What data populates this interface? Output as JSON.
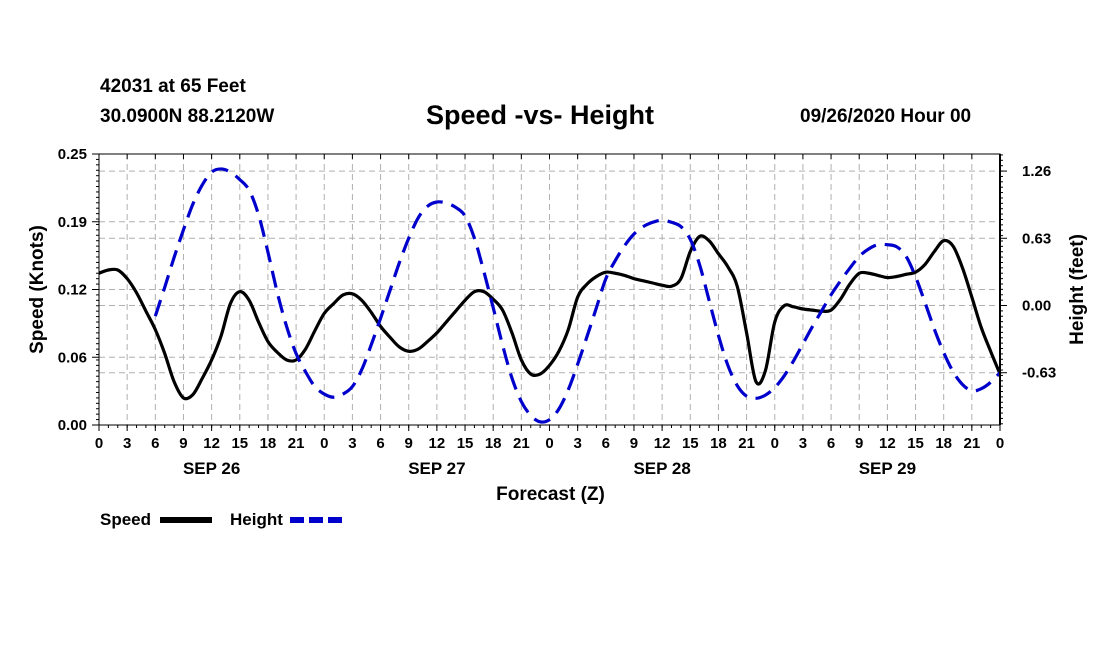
{
  "header": {
    "station": "42031 at 65 Feet",
    "coords": "30.0900N 88.2120W",
    "title": "Speed -vs- Height",
    "date": "09/26/2020 Hour 00"
  },
  "chart_data": {
    "type": "line",
    "title": "Speed -vs- Height",
    "xlabel": "Forecast (Z)",
    "ylabel_left": "Speed (Knots)",
    "ylabel_right": "Height (feet)",
    "x_range_hours": [
      0,
      96
    ],
    "y_left_range": [
      0,
      0.25
    ],
    "y_right_range": [
      -1.12,
      1.42
    ],
    "y_left_ticks": [
      "0.00",
      "0.06",
      "0.12",
      "0.19",
      "0.25"
    ],
    "y_left_tick_values": [
      0,
      0.0625,
      0.125,
      0.1875,
      0.25
    ],
    "y_right_ticks": [
      "-0.63",
      "0.00",
      "0.63",
      "1.26"
    ],
    "y_right_tick_values": [
      -0.63,
      0,
      0.63,
      1.26
    ],
    "x_tick_hours": [
      0,
      3,
      6,
      9,
      12,
      15,
      18,
      21,
      24,
      27,
      30,
      33,
      36,
      39,
      42,
      45,
      48,
      51,
      54,
      57,
      60,
      63,
      66,
      69,
      72,
      75,
      78,
      81,
      84,
      87,
      90,
      93,
      96
    ],
    "x_tick_labels": [
      "0",
      "3",
      "6",
      "9",
      "12",
      "15",
      "18",
      "21",
      "0",
      "3",
      "6",
      "9",
      "12",
      "15",
      "18",
      "21",
      "0",
      "3",
      "6",
      "9",
      "12",
      "15",
      "18",
      "21",
      "0",
      "3",
      "6",
      "9",
      "12",
      "15",
      "18",
      "21",
      "0"
    ],
    "day_labels": [
      {
        "label": "SEP 26",
        "hour": 12
      },
      {
        "label": "SEP 27",
        "hour": 36
      },
      {
        "label": "SEP 28",
        "hour": 60
      },
      {
        "label": "SEP 29",
        "hour": 84
      }
    ],
    "grid": true,
    "legend_position": "bottom-left",
    "series": [
      {
        "name": "Speed",
        "axis": "left",
        "color": "#000000",
        "dash": "solid",
        "points": [
          [
            0,
            0.14
          ],
          [
            1,
            0.143
          ],
          [
            2,
            0.143
          ],
          [
            3,
            0.135
          ],
          [
            4,
            0.122
          ],
          [
            5,
            0.105
          ],
          [
            6,
            0.088
          ],
          [
            7,
            0.066
          ],
          [
            8,
            0.04
          ],
          [
            9,
            0.025
          ],
          [
            10,
            0.028
          ],
          [
            11,
            0.043
          ],
          [
            12,
            0.06
          ],
          [
            13,
            0.082
          ],
          [
            14,
            0.112
          ],
          [
            15,
            0.123
          ],
          [
            16,
            0.115
          ],
          [
            17,
            0.095
          ],
          [
            18,
            0.077
          ],
          [
            19,
            0.067
          ],
          [
            20,
            0.06
          ],
          [
            21,
            0.06
          ],
          [
            22,
            0.07
          ],
          [
            23,
            0.087
          ],
          [
            24,
            0.103
          ],
          [
            25,
            0.112
          ],
          [
            26,
            0.12
          ],
          [
            27,
            0.121
          ],
          [
            28,
            0.115
          ],
          [
            29,
            0.104
          ],
          [
            30,
            0.091
          ],
          [
            31,
            0.081
          ],
          [
            32,
            0.072
          ],
          [
            33,
            0.068
          ],
          [
            34,
            0.07
          ],
          [
            35,
            0.077
          ],
          [
            36,
            0.085
          ],
          [
            37,
            0.095
          ],
          [
            38,
            0.105
          ],
          [
            39,
            0.115
          ],
          [
            40,
            0.123
          ],
          [
            41,
            0.123
          ],
          [
            42,
            0.116
          ],
          [
            43,
            0.106
          ],
          [
            44,
            0.085
          ],
          [
            45,
            0.06
          ],
          [
            46,
            0.047
          ],
          [
            47,
            0.047
          ],
          [
            48,
            0.055
          ],
          [
            49,
            0.068
          ],
          [
            50,
            0.088
          ],
          [
            51,
            0.118
          ],
          [
            52,
            0.13
          ],
          [
            53,
            0.137
          ],
          [
            54,
            0.141
          ],
          [
            55,
            0.14
          ],
          [
            56,
            0.138
          ],
          [
            57,
            0.135
          ],
          [
            58,
            0.133
          ],
          [
            59,
            0.131
          ],
          [
            60,
            0.129
          ],
          [
            61,
            0.128
          ],
          [
            62,
            0.135
          ],
          [
            63,
            0.16
          ],
          [
            64,
            0.174
          ],
          [
            65,
            0.17
          ],
          [
            66,
            0.158
          ],
          [
            67,
            0.146
          ],
          [
            68,
            0.128
          ],
          [
            69,
            0.085
          ],
          [
            70,
            0.04
          ],
          [
            71,
            0.05
          ],
          [
            72,
            0.095
          ],
          [
            73,
            0.11
          ],
          [
            74,
            0.109
          ],
          [
            75,
            0.107
          ],
          [
            76,
            0.106
          ],
          [
            77,
            0.105
          ],
          [
            78,
            0.106
          ],
          [
            79,
            0.116
          ],
          [
            80,
            0.13
          ],
          [
            81,
            0.14
          ],
          [
            82,
            0.14
          ],
          [
            83,
            0.138
          ],
          [
            84,
            0.136
          ],
          [
            85,
            0.137
          ],
          [
            86,
            0.139
          ],
          [
            87,
            0.141
          ],
          [
            88,
            0.148
          ],
          [
            89,
            0.16
          ],
          [
            90,
            0.17
          ],
          [
            91,
            0.165
          ],
          [
            92,
            0.145
          ],
          [
            93,
            0.118
          ],
          [
            94,
            0.09
          ],
          [
            95,
            0.068
          ],
          [
            96,
            0.047
          ]
        ]
      },
      {
        "name": "Height",
        "axis": "right",
        "color": "#0000cc",
        "dash": "dashed",
        "points": [
          [
            0,
            -0.1
          ],
          [
            1,
            0.17
          ],
          [
            2,
            0.45
          ],
          [
            3,
            0.71
          ],
          [
            4,
            0.95
          ],
          [
            5,
            1.13
          ],
          [
            6,
            1.25
          ],
          [
            7,
            1.28
          ],
          [
            8,
            1.25
          ],
          [
            9,
            1.18
          ],
          [
            10,
            1.08
          ],
          [
            11,
            0.85
          ],
          [
            12,
            0.5
          ],
          [
            13,
            0.12
          ],
          [
            14,
            -0.2
          ],
          [
            15,
            -0.45
          ],
          [
            16,
            -0.62
          ],
          [
            17,
            -0.76
          ],
          [
            18,
            -0.83
          ],
          [
            19,
            -0.86
          ],
          [
            20,
            -0.83
          ],
          [
            21,
            -0.76
          ],
          [
            22,
            -0.6
          ],
          [
            23,
            -0.37
          ],
          [
            24,
            -0.12
          ],
          [
            25,
            0.14
          ],
          [
            26,
            0.4
          ],
          [
            27,
            0.63
          ],
          [
            28,
            0.82
          ],
          [
            29,
            0.93
          ],
          [
            30,
            0.97
          ],
          [
            31,
            0.96
          ],
          [
            32,
            0.92
          ],
          [
            33,
            0.84
          ],
          [
            34,
            0.63
          ],
          [
            35,
            0.32
          ],
          [
            36,
            -0.02
          ],
          [
            37,
            -0.37
          ],
          [
            38,
            -0.68
          ],
          [
            39,
            -0.9
          ],
          [
            40,
            -1.03
          ],
          [
            41,
            -1.09
          ],
          [
            42,
            -1.07
          ],
          [
            43,
            -0.97
          ],
          [
            44,
            -0.79
          ],
          [
            45,
            -0.55
          ],
          [
            46,
            -0.29
          ],
          [
            47,
            -0.02
          ],
          [
            48,
            0.25
          ],
          [
            49,
            0.42
          ],
          [
            50,
            0.56
          ],
          [
            51,
            0.67
          ],
          [
            52,
            0.74
          ],
          [
            53,
            0.78
          ],
          [
            54,
            0.8
          ],
          [
            55,
            0.78
          ],
          [
            56,
            0.74
          ],
          [
            57,
            0.62
          ],
          [
            58,
            0.38
          ],
          [
            59,
            0.05
          ],
          [
            60,
            -0.28
          ],
          [
            61,
            -0.56
          ],
          [
            62,
            -0.75
          ],
          [
            63,
            -0.85
          ],
          [
            64,
            -0.87
          ],
          [
            65,
            -0.84
          ],
          [
            66,
            -0.77
          ],
          [
            67,
            -0.66
          ],
          [
            68,
            -0.52
          ],
          [
            69,
            -0.36
          ],
          [
            70,
            -0.2
          ],
          [
            71,
            -0.05
          ],
          [
            72,
            0.1
          ],
          [
            73,
            0.23
          ],
          [
            74,
            0.35
          ],
          [
            75,
            0.46
          ],
          [
            76,
            0.53
          ],
          [
            77,
            0.57
          ],
          [
            78,
            0.57
          ],
          [
            79,
            0.55
          ],
          [
            80,
            0.46
          ],
          [
            81,
            0.27
          ],
          [
            82,
            0.03
          ],
          [
            83,
            -0.22
          ],
          [
            84,
            -0.44
          ],
          [
            85,
            -0.62
          ],
          [
            86,
            -0.74
          ],
          [
            87,
            -0.8
          ],
          [
            88,
            -0.78
          ],
          [
            89,
            -0.72
          ],
          [
            90,
            -0.63
          ]
        ],
        "x_offset_hours": 6
      }
    ],
    "legend": [
      {
        "label": "Speed",
        "color": "#000000",
        "dash": "solid"
      },
      {
        "label": "Height",
        "color": "#0000cc",
        "dash": "dashed"
      }
    ]
  }
}
